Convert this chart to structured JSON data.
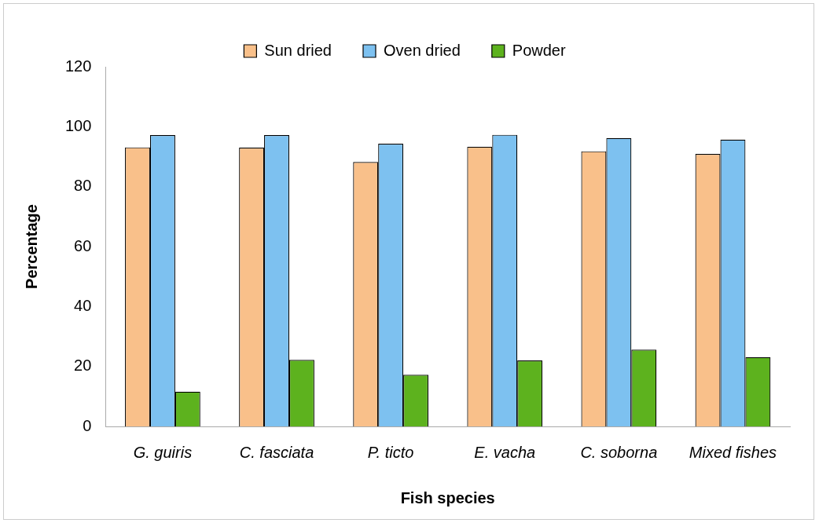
{
  "chart_data": {
    "type": "bar",
    "xlabel": "Fish species",
    "ylabel": "Percentage",
    "categories": [
      "G. guiris",
      "C. fasciata",
      "P. ticto",
      "E. vacha",
      "C. soborna",
      "Mixed fishes"
    ],
    "series": [
      {
        "name": "Sun dried",
        "color": "#f9c08a",
        "values": [
          93.1,
          93,
          88.2,
          93.3,
          91.8,
          90.9
        ]
      },
      {
        "name": "Oven dried",
        "color": "#7dc1f0",
        "values": [
          97.2,
          97.2,
          94.3,
          97.3,
          96.2,
          95.7
        ]
      },
      {
        "name": "Powder",
        "color": "#5db21e",
        "values": [
          11.6,
          22.2,
          17.2,
          22,
          25.6,
          23.1
        ]
      }
    ],
    "ylim": [
      0,
      120
    ],
    "yticks": [
      0,
      20,
      40,
      60,
      80,
      100,
      120
    ],
    "grid": false,
    "legend": "top"
  }
}
